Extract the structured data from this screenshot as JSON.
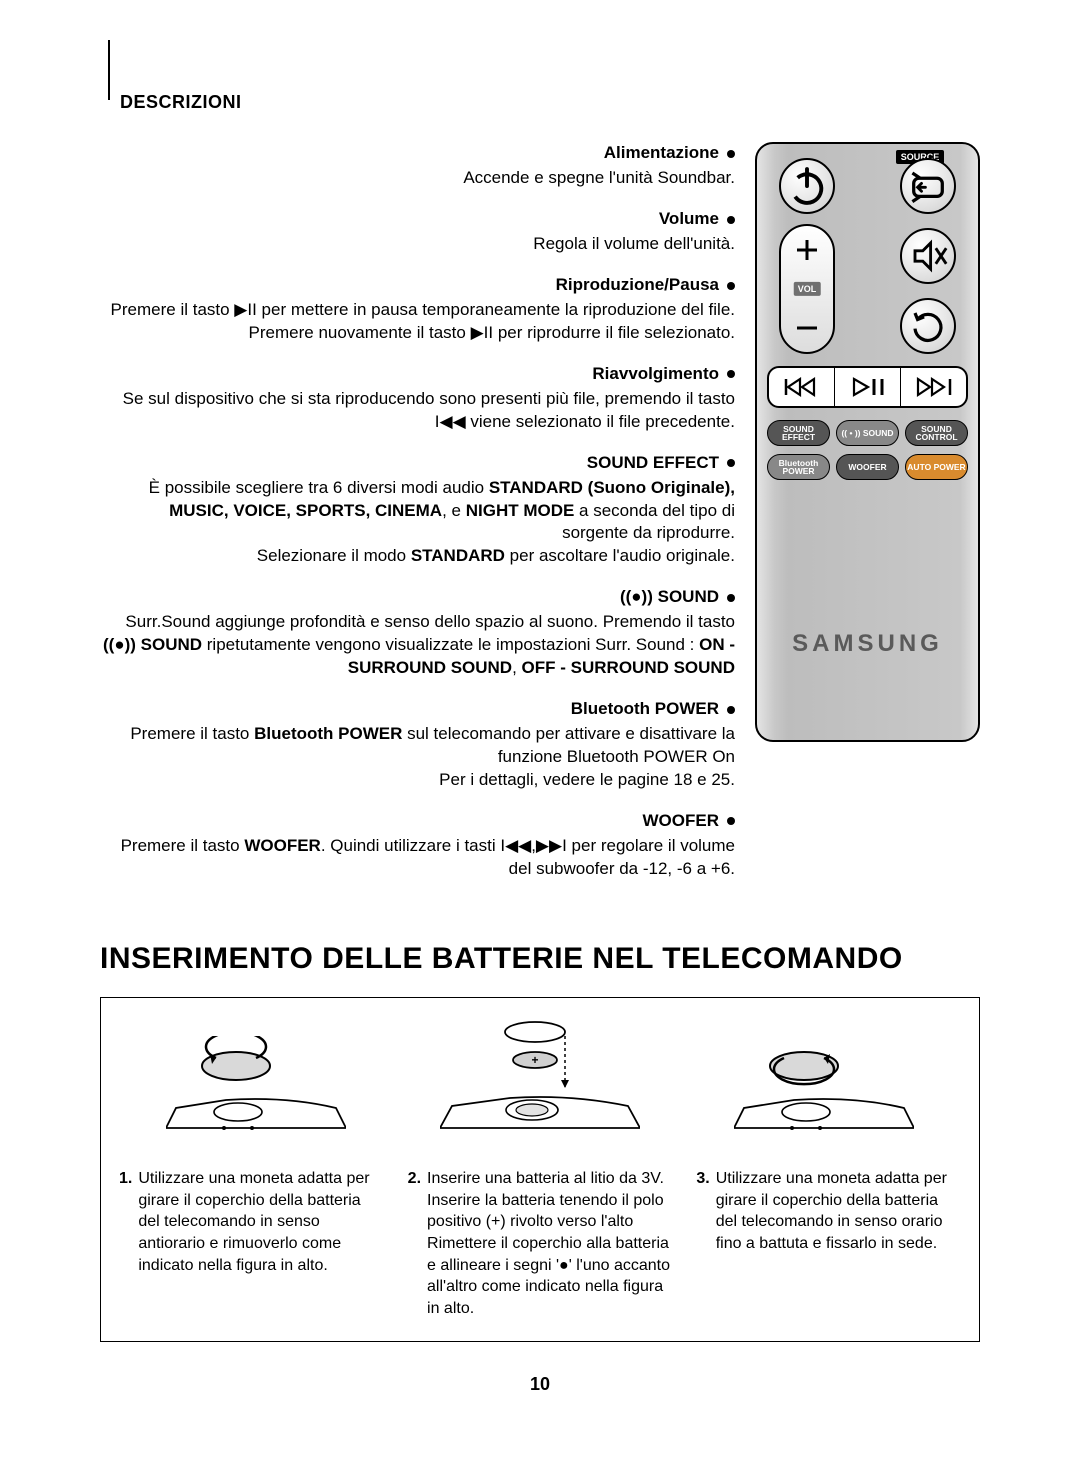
{
  "section_header": "DESCRIZIONI",
  "labels": {
    "source": "SOURCE",
    "vol": "VOL",
    "brand": "SAMSUNG"
  },
  "pills": {
    "sound_effect": "SOUND EFFECT",
    "surr": "(( • )) SOUND",
    "sound_control": "SOUND CONTROL",
    "bt_power": "Bluetooth POWER",
    "woofer": "WOOFER",
    "auto_power": "AUTO POWER"
  },
  "items": [
    {
      "title": "Alimentazione",
      "body": "Accende e spegne l'unità Soundbar."
    },
    {
      "title": "Volume",
      "body": "Regola il volume dell'unità."
    },
    {
      "title": "Riproduzione/Pausa",
      "body": "Premere il tasto ▶II per mettere in pausa temporaneamente la riproduzione del file. Premere nuovamente il tasto ▶II per riprodurre il file selezionato."
    },
    {
      "title": "Riavvolgimento",
      "body": "Se sul dispositivo che si sta riproducendo sono presenti più file, premendo il tasto I◀◀ viene selezionato il file precedente."
    },
    {
      "title": "SOUND EFFECT",
      "body_html": "È possibile scegliere tra 6 diversi modi audio <b>STANDARD (Suono Originale), MUSIC, VOICE, SPORTS, CINEMA</b>, e <b>NIGHT MODE</b> a seconda del tipo di sorgente da riprodurre.<br>Selezionare il modo <b>STANDARD</b> per ascoltare l'audio originale."
    },
    {
      "title": "((●)) SOUND",
      "body_html": "Surr.Sound aggiunge profondità e senso dello spazio al suono. Premendo il tasto <b>((●)) SOUND</b> ripetutamente vengono visualizzate le impostazioni Surr. Sound : <b>ON - SURROUND SOUND</b>, <b>OFF - SURROUND SOUND</b>"
    },
    {
      "title": "Bluetooth POWER",
      "body_html": "Premere il tasto <b>Bluetooth POWER</b> sul telecomando per attivare e disattivare la funzione Bluetooth POWER On<br>Per i dettagli, vedere le pagine 18 e 25."
    },
    {
      "title": "WOOFER",
      "body_html": "Premere il tasto <b>WOOFER</b>. Quindi utilizzare i tasti I◀◀,▶▶I per regolare il volume del subwoofer da -12, -6 a +6."
    }
  ],
  "battery": {
    "heading": "INSERIMENTO DELLE BATTERIE NEL TELECOMANDO",
    "steps": [
      {
        "n": "1.",
        "t": "Utilizzare una moneta adatta per girare il coperchio della batteria del telecomando in senso antiorario e rimuoverlo come indicato nella figura in alto."
      },
      {
        "n": "2.",
        "t": "Inserire una batteria al litio da 3V. Inserire la batteria tenendo il polo positivo (+) rivolto verso l'alto Rimettere il coperchio alla batteria e allineare i segni '●' l'uno accanto all'altro come indicato nella figura in alto."
      },
      {
        "n": "3.",
        "t": "Utilizzare una moneta adatta per girare il coperchio della batteria del telecomando in senso orario fino a battuta e fissarlo in sede."
      }
    ]
  },
  "page_number": "10"
}
